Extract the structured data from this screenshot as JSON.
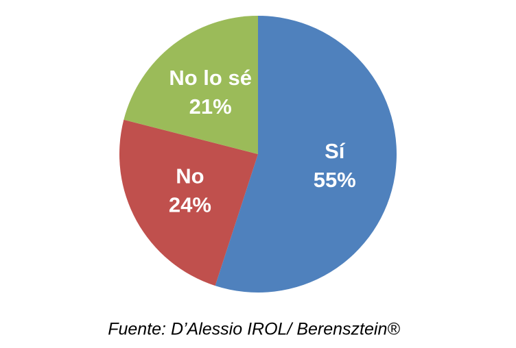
{
  "chart_data": {
    "type": "pie",
    "categories": [
      "Sí",
      "No",
      "No lo sé"
    ],
    "values": [
      55,
      24,
      21
    ],
    "value_labels": [
      "55%",
      "24%",
      "21%"
    ],
    "colors": [
      "#4f81bd",
      "#c0504d",
      "#9bbb59"
    ],
    "source": "Fuente: D’Alessio IROL/ Berensztein®"
  }
}
